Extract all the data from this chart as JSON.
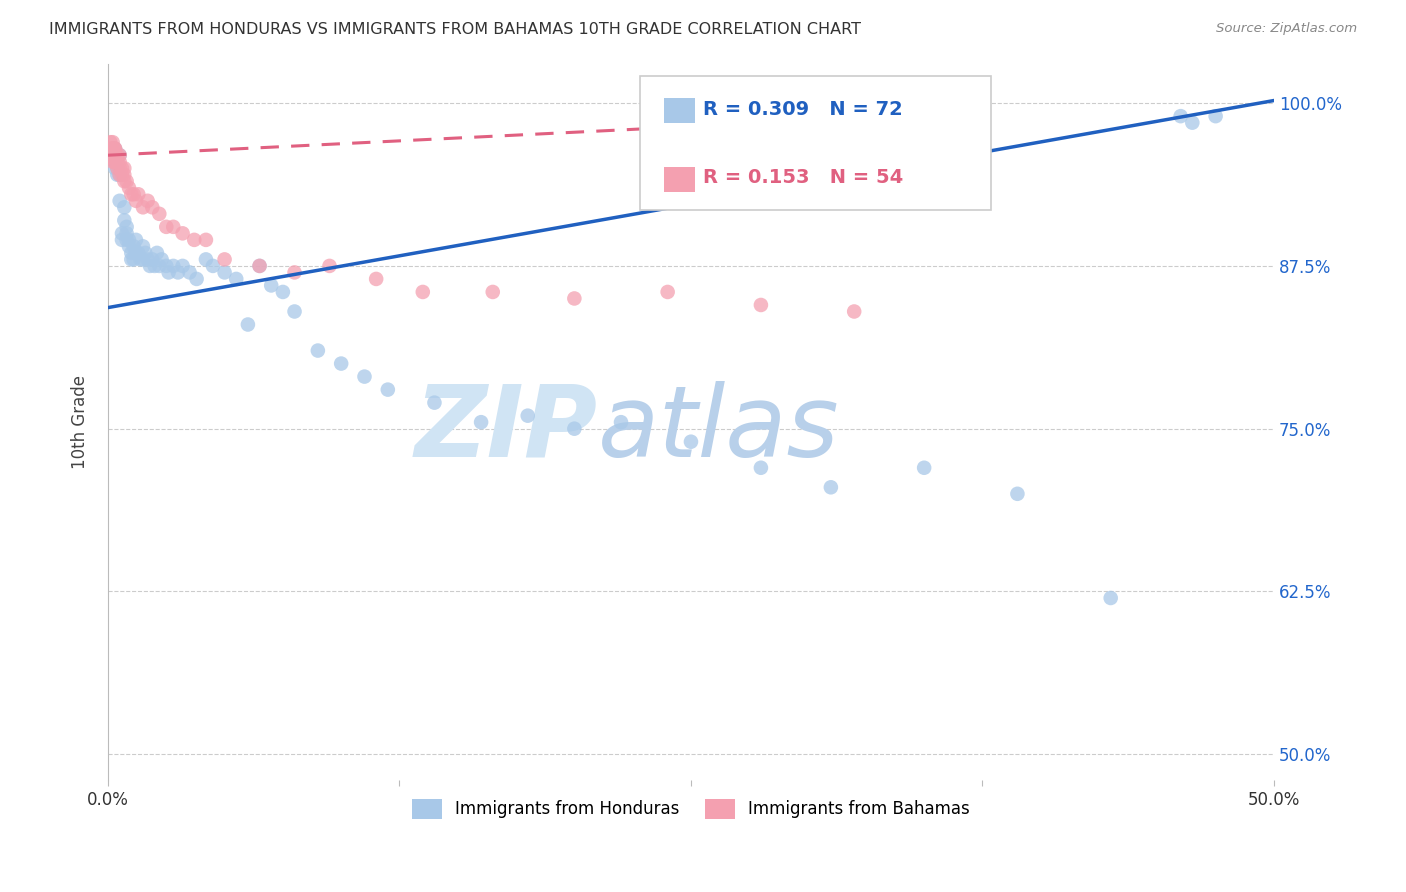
{
  "title": "IMMIGRANTS FROM HONDURAS VS IMMIGRANTS FROM BAHAMAS 10TH GRADE CORRELATION CHART",
  "source": "Source: ZipAtlas.com",
  "ylabel": "10th Grade",
  "ytick_labels": [
    "100.0%",
    "87.5%",
    "75.0%",
    "62.5%",
    "50.0%"
  ],
  "ytick_values": [
    1.0,
    0.875,
    0.75,
    0.625,
    0.5
  ],
  "xlim": [
    0.0,
    0.5
  ],
  "ylim": [
    0.48,
    1.03
  ],
  "legend_R1": "0.309",
  "legend_N1": "72",
  "legend_R2": "0.153",
  "legend_N2": "54",
  "color_honduras": "#a8c8e8",
  "color_bahamas": "#f4a0b0",
  "color_honduras_line": "#2060c0",
  "color_bahamas_line": "#e06080",
  "watermark_zip": "ZIP",
  "watermark_atlas": "atlas",
  "honduras_scatter_x": [
    0.001,
    0.002,
    0.002,
    0.003,
    0.003,
    0.003,
    0.004,
    0.004,
    0.005,
    0.005,
    0.005,
    0.006,
    0.006,
    0.007,
    0.007,
    0.008,
    0.008,
    0.008,
    0.009,
    0.009,
    0.01,
    0.01,
    0.011,
    0.011,
    0.012,
    0.012,
    0.013,
    0.014,
    0.015,
    0.015,
    0.016,
    0.017,
    0.018,
    0.019,
    0.02,
    0.021,
    0.022,
    0.023,
    0.025,
    0.026,
    0.028,
    0.03,
    0.032,
    0.035,
    0.038,
    0.042,
    0.045,
    0.05,
    0.055,
    0.06,
    0.065,
    0.07,
    0.075,
    0.08,
    0.09,
    0.1,
    0.11,
    0.12,
    0.14,
    0.16,
    0.18,
    0.2,
    0.22,
    0.25,
    0.28,
    0.31,
    0.35,
    0.39,
    0.43,
    0.46,
    0.465,
    0.475
  ],
  "honduras_scatter_y": [
    0.96,
    0.965,
    0.96,
    0.96,
    0.95,
    0.965,
    0.945,
    0.95,
    0.925,
    0.945,
    0.96,
    0.9,
    0.895,
    0.92,
    0.91,
    0.9,
    0.895,
    0.905,
    0.89,
    0.895,
    0.88,
    0.885,
    0.89,
    0.88,
    0.895,
    0.885,
    0.885,
    0.88,
    0.89,
    0.88,
    0.885,
    0.88,
    0.875,
    0.88,
    0.875,
    0.885,
    0.875,
    0.88,
    0.875,
    0.87,
    0.875,
    0.87,
    0.875,
    0.87,
    0.865,
    0.88,
    0.875,
    0.87,
    0.865,
    0.83,
    0.875,
    0.86,
    0.855,
    0.84,
    0.81,
    0.8,
    0.79,
    0.78,
    0.77,
    0.755,
    0.76,
    0.75,
    0.755,
    0.74,
    0.72,
    0.705,
    0.72,
    0.7,
    0.62,
    0.99,
    0.985,
    0.99
  ],
  "bahamas_scatter_x": [
    0.001,
    0.001,
    0.001,
    0.002,
    0.002,
    0.002,
    0.002,
    0.002,
    0.002,
    0.003,
    0.003,
    0.003,
    0.003,
    0.003,
    0.003,
    0.003,
    0.004,
    0.004,
    0.004,
    0.005,
    0.005,
    0.005,
    0.005,
    0.006,
    0.006,
    0.007,
    0.007,
    0.007,
    0.008,
    0.009,
    0.01,
    0.011,
    0.012,
    0.013,
    0.015,
    0.017,
    0.019,
    0.022,
    0.025,
    0.028,
    0.032,
    0.037,
    0.042,
    0.05,
    0.065,
    0.08,
    0.095,
    0.115,
    0.135,
    0.165,
    0.2,
    0.24,
    0.28,
    0.32
  ],
  "bahamas_scatter_y": [
    0.96,
    0.965,
    0.97,
    0.965,
    0.96,
    0.955,
    0.96,
    0.965,
    0.97,
    0.96,
    0.955,
    0.96,
    0.965,
    0.955,
    0.96,
    0.965,
    0.95,
    0.955,
    0.96,
    0.945,
    0.95,
    0.955,
    0.96,
    0.945,
    0.95,
    0.94,
    0.945,
    0.95,
    0.94,
    0.935,
    0.93,
    0.93,
    0.925,
    0.93,
    0.92,
    0.925,
    0.92,
    0.915,
    0.905,
    0.905,
    0.9,
    0.895,
    0.895,
    0.88,
    0.875,
    0.87,
    0.875,
    0.865,
    0.855,
    0.855,
    0.85,
    0.855,
    0.845,
    0.84
  ],
  "honduras_line_x": [
    0.0,
    0.5
  ],
  "honduras_line_y": [
    0.843,
    1.002
  ],
  "bahamas_line_x": [
    0.0,
    0.34
  ],
  "bahamas_line_y": [
    0.96,
    0.99
  ],
  "background_color": "#ffffff",
  "grid_color": "#cccccc"
}
